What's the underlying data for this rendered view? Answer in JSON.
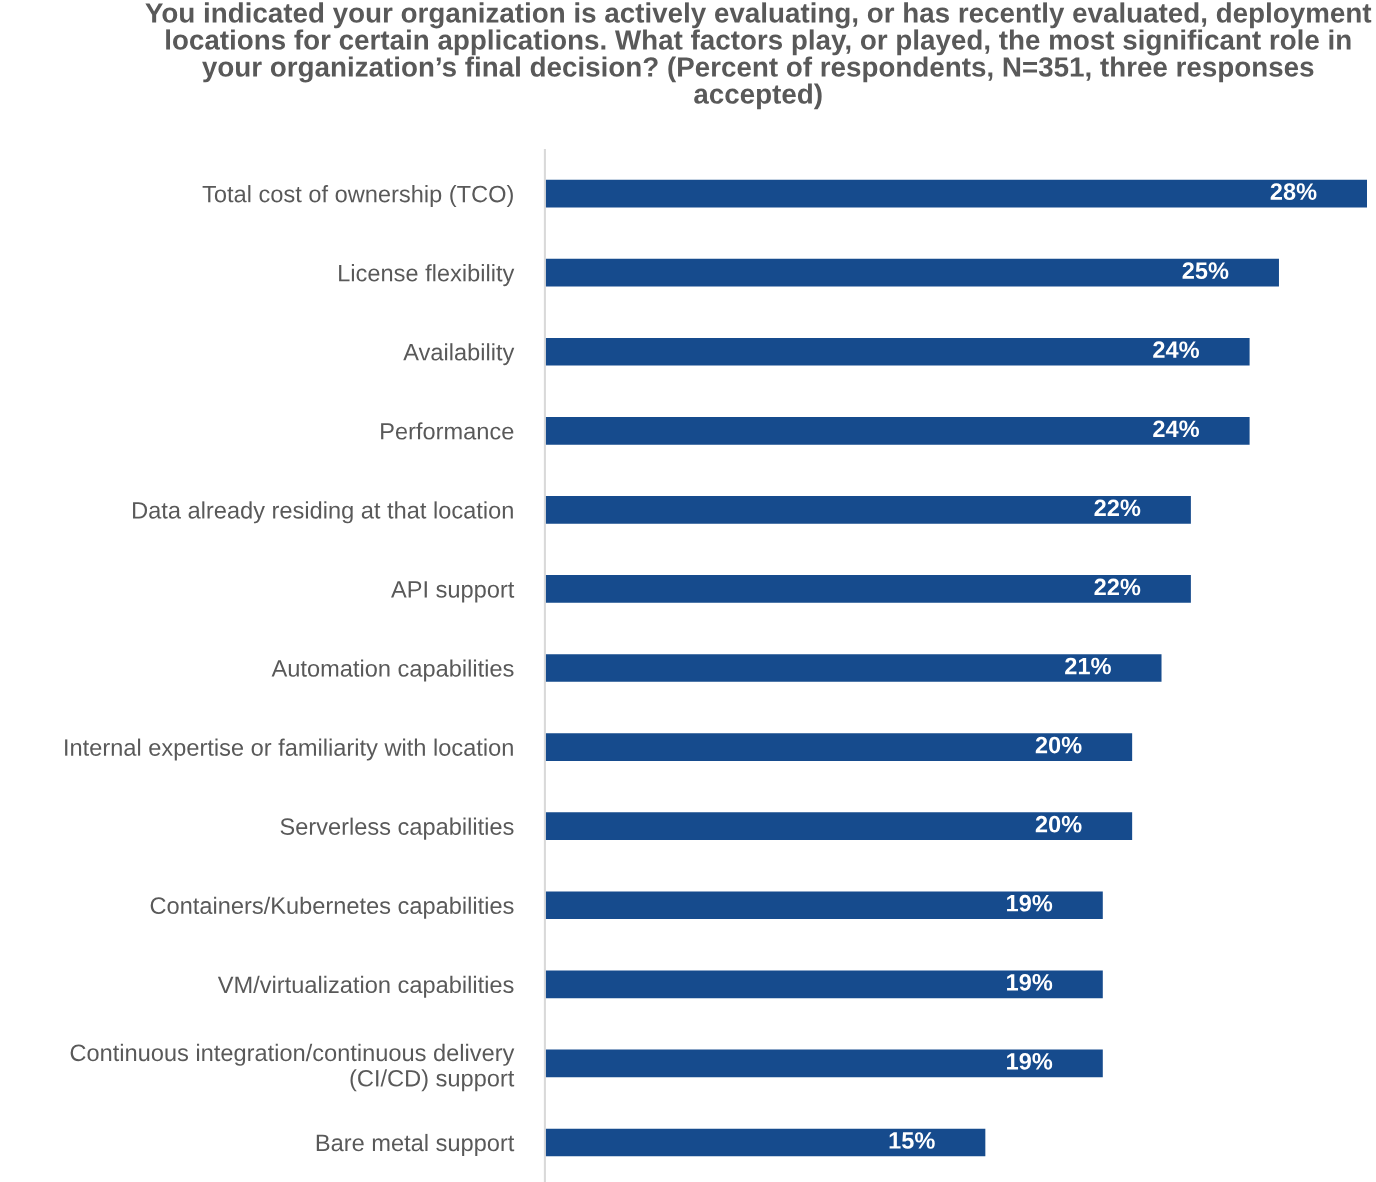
{
  "chart_data": {
    "type": "bar",
    "orientation": "horizontal",
    "title": "You indicated your organization is actively evaluating, or has recently evaluated, deployment locations for certain applications. What factors play, or played, the most significant role in your organization’s final decision? (Percent of respondents, N=351, three responses accepted)",
    "categories": [
      "Total cost of ownership (TCO)",
      "License flexibility",
      "Availability",
      "Performance",
      "Data already residing at that location",
      "API support",
      "Automation capabilities",
      "Internal expertise or familiarity with location",
      "Serverless capabilities",
      "Containers/Kubernetes capabilities",
      "VM/virtualization capabilities",
      "Continuous integration/continuous delivery\n(CI/CD) support",
      "Bare metal support"
    ],
    "values": [
      28,
      25,
      24,
      24,
      22,
      22,
      21,
      20,
      20,
      19,
      19,
      19,
      15
    ],
    "value_labels": [
      "28%",
      "25%",
      "24%",
      "24%",
      "22%",
      "22%",
      "21%",
      "20%",
      "20%",
      "19%",
      "19%",
      "19%",
      "15%"
    ],
    "color": "#164b8d",
    "grid": false,
    "legend": false,
    "tick_labels": "y"
  }
}
